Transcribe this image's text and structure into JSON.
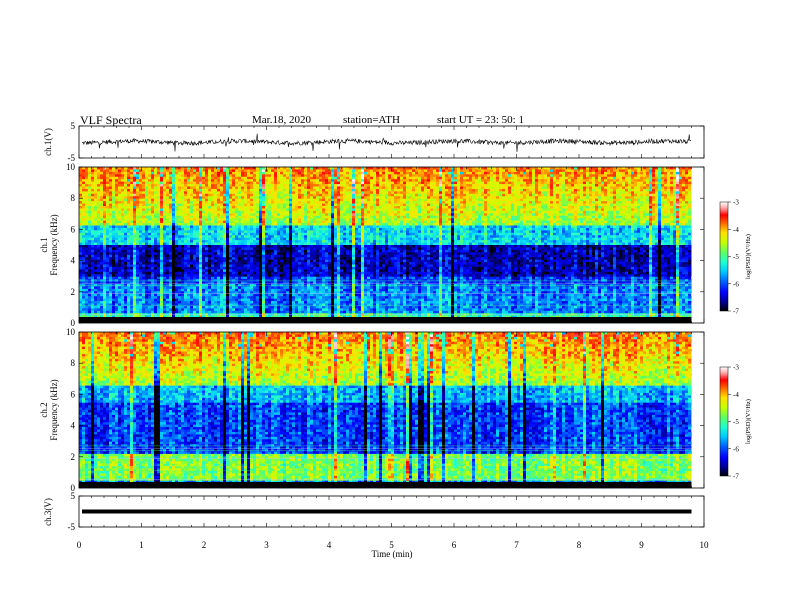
{
  "header": {
    "title": "VLF  Spectra",
    "date": "Mar.18, 2020",
    "station": "station=ATH",
    "start": "start  UT  =   23: 50: 1"
  },
  "chart_data": {
    "type": "heatmap",
    "xlabel": "Time  (min)",
    "xlim": [
      0,
      10
    ],
    "xticks": [
      "0",
      "1",
      "2",
      "3",
      "4",
      "5",
      "6",
      "7",
      "8",
      "9",
      "10"
    ],
    "panels": [
      {
        "id": "ch1-waveform",
        "type": "line",
        "ylabel": "ch.1(V)",
        "ylim": [
          -5,
          5
        ],
        "yticks": [
          "5",
          "-5"
        ]
      },
      {
        "id": "ch1-spectrogram",
        "type": "heatmap",
        "ylabel_top": "ch.1",
        "ylabel": "Frequency  (kHz)",
        "ylim": [
          0,
          10
        ],
        "yticks": [
          "0",
          "2",
          "4",
          "6",
          "8",
          "10"
        ],
        "data_end_min": 9.8
      },
      {
        "id": "ch2-spectrogram",
        "type": "heatmap",
        "ylabel_top": "ch.2",
        "ylabel": "Frequency  (kHz)",
        "ylim": [
          0,
          10
        ],
        "yticks": [
          "0",
          "2",
          "4",
          "6",
          "8",
          "10"
        ],
        "data_end_min": 9.8
      },
      {
        "id": "ch3-waveform",
        "type": "line",
        "ylabel": "ch.3(V)",
        "ylim": [
          -5,
          5
        ],
        "yticks": [
          "5",
          "-5"
        ],
        "level": 0
      }
    ],
    "colorbar": {
      "label": "log(PSD)(V²/Hz)",
      "range": [
        -7,
        -3
      ],
      "ticks": [
        "-3",
        "-4",
        "-5",
        "-6",
        "-7"
      ],
      "colors": [
        "#000000",
        "#00008f",
        "#0000ff",
        "#0060ff",
        "#00c8ff",
        "#20ffd0",
        "#60ff60",
        "#c8ff00",
        "#ffe000",
        "#ff6000",
        "#ff0000",
        "#ffb0b0",
        "#ffffff"
      ]
    }
  }
}
